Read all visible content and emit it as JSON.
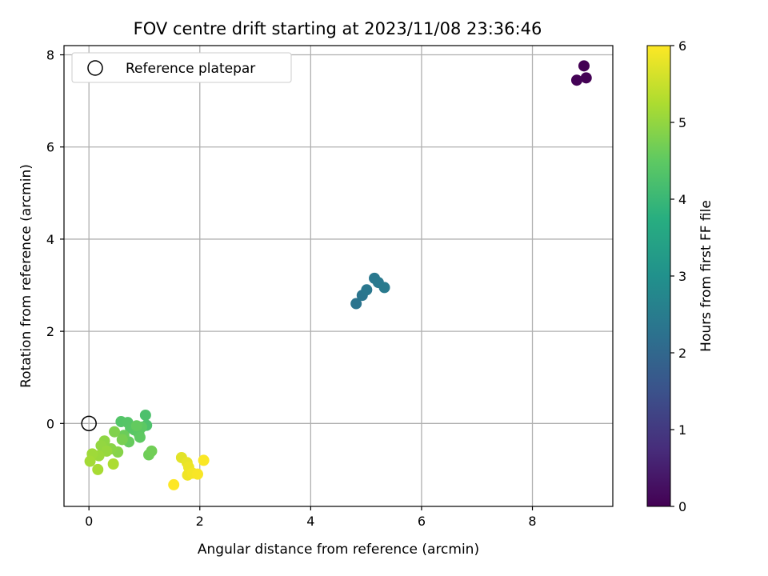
{
  "chart_data": {
    "type": "scatter",
    "title": "FOV centre drift starting at 2023/11/08 23:36:46",
    "xlabel": "Angular distance from reference (arcmin)",
    "ylabel": "Rotation from reference (arcmin)",
    "xlim": [
      -0.45,
      9.45
    ],
    "ylim": [
      -1.8,
      8.2
    ],
    "xticks": [
      0,
      2,
      4,
      6,
      8
    ],
    "yticks": [
      0,
      2,
      4,
      6,
      8
    ],
    "grid": true,
    "legend": {
      "placement": "top-left",
      "entries": [
        "Reference platepar"
      ]
    },
    "reference_point": {
      "x": 0,
      "y": 0,
      "label": "Reference platepar"
    },
    "colorbar": {
      "label": "Hours from first FF file",
      "range": [
        0,
        6
      ],
      "ticks": [
        0,
        1,
        2,
        3,
        4,
        5,
        6
      ],
      "colormap": "viridis"
    },
    "points": [
      {
        "x": 8.93,
        "y": 7.76,
        "hours": 0.0
      },
      {
        "x": 8.97,
        "y": 7.5,
        "hours": 0.02
      },
      {
        "x": 8.8,
        "y": 7.45,
        "hours": 0.04
      },
      {
        "x": 4.82,
        "y": 2.6,
        "hours": 2.3
      },
      {
        "x": 4.93,
        "y": 2.78,
        "hours": 2.33
      },
      {
        "x": 5.01,
        "y": 2.9,
        "hours": 2.36
      },
      {
        "x": 5.15,
        "y": 3.15,
        "hours": 2.39
      },
      {
        "x": 5.22,
        "y": 3.06,
        "hours": 2.42
      },
      {
        "x": 5.33,
        "y": 2.95,
        "hours": 2.45
      },
      {
        "x": 1.02,
        "y": 0.18,
        "hours": 4.25
      },
      {
        "x": 1.04,
        "y": -0.04,
        "hours": 4.28
      },
      {
        "x": 0.58,
        "y": 0.04,
        "hours": 4.35
      },
      {
        "x": 0.7,
        "y": 0.02,
        "hours": 4.38
      },
      {
        "x": 0.75,
        "y": -0.1,
        "hours": 4.4
      },
      {
        "x": 0.82,
        "y": -0.14,
        "hours": 4.42
      },
      {
        "x": 0.9,
        "y": -0.22,
        "hours": 4.45
      },
      {
        "x": 0.95,
        "y": -0.08,
        "hours": 4.47
      },
      {
        "x": 0.92,
        "y": -0.3,
        "hours": 4.5
      },
      {
        "x": 0.86,
        "y": -0.05,
        "hours": 4.55
      },
      {
        "x": 0.72,
        "y": -0.4,
        "hours": 4.58
      },
      {
        "x": 0.63,
        "y": -0.26,
        "hours": 4.62
      },
      {
        "x": 1.08,
        "y": -0.68,
        "hours": 4.65
      },
      {
        "x": 1.13,
        "y": -0.6,
        "hours": 4.68
      },
      {
        "x": 0.6,
        "y": -0.35,
        "hours": 4.75
      },
      {
        "x": 0.46,
        "y": -0.18,
        "hours": 4.82
      },
      {
        "x": 0.52,
        "y": -0.62,
        "hours": 4.88
      },
      {
        "x": 0.4,
        "y": -0.55,
        "hours": 4.92
      },
      {
        "x": 0.28,
        "y": -0.38,
        "hours": 4.96
      },
      {
        "x": 0.22,
        "y": -0.48,
        "hours": 5.0
      },
      {
        "x": 0.32,
        "y": -0.6,
        "hours": 5.04
      },
      {
        "x": 0.18,
        "y": -0.7,
        "hours": 5.08
      },
      {
        "x": 0.06,
        "y": -0.66,
        "hours": 5.12
      },
      {
        "x": 0.02,
        "y": -0.82,
        "hours": 5.16
      },
      {
        "x": 0.16,
        "y": -1.0,
        "hours": 5.2
      },
      {
        "x": 0.44,
        "y": -0.88,
        "hours": 5.24
      },
      {
        "x": 1.67,
        "y": -0.74,
        "hours": 5.75
      },
      {
        "x": 1.77,
        "y": -0.85,
        "hours": 5.8
      },
      {
        "x": 1.8,
        "y": -0.95,
        "hours": 5.85
      },
      {
        "x": 1.78,
        "y": -1.12,
        "hours": 5.88
      },
      {
        "x": 1.87,
        "y": -1.08,
        "hours": 5.92
      },
      {
        "x": 1.96,
        "y": -1.1,
        "hours": 5.95
      },
      {
        "x": 2.07,
        "y": -0.8,
        "hours": 5.97
      },
      {
        "x": 1.53,
        "y": -1.33,
        "hours": 6.0
      }
    ]
  }
}
